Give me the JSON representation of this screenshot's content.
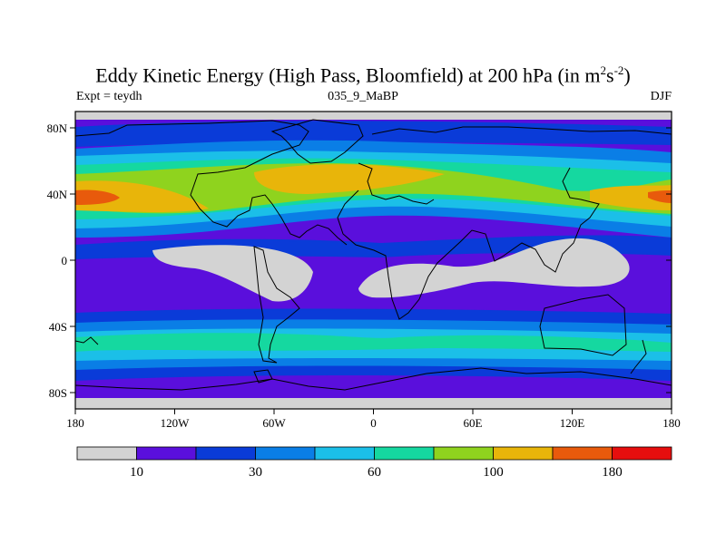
{
  "title": {
    "main": "Eddy Kinetic Energy (High Pass, Bloomfield) at 200 hPa (in m",
    "sup1": "2",
    "mid": "s",
    "sup2": "-2",
    "close": ")"
  },
  "subtitle_left": "Expt = teydh",
  "subtitle_center": "035_9_MaBP",
  "subtitle_right": "DJF",
  "lat_labels": [
    "80N",
    "40N",
    "0",
    "40S",
    "80S"
  ],
  "lon_labels": [
    "180",
    "120W",
    "60W",
    "0",
    "60E",
    "120E",
    "180"
  ],
  "colorbar": {
    "colors": [
      "#d3d3d3",
      "#5a0fdc",
      "#0a3bd8",
      "#0a7ee6",
      "#1bbfe8",
      "#15d8a0",
      "#8fd31e",
      "#e8b50a",
      "#e85a0c",
      "#e60e0e"
    ],
    "labels": [
      {
        "text": "10",
        "after_box": 1
      },
      {
        "text": "30",
        "after_box": 3
      },
      {
        "text": "60",
        "after_box": 5
      },
      {
        "text": "100",
        "after_box": 7
      },
      {
        "text": "180",
        "after_box": 9
      }
    ]
  }
}
